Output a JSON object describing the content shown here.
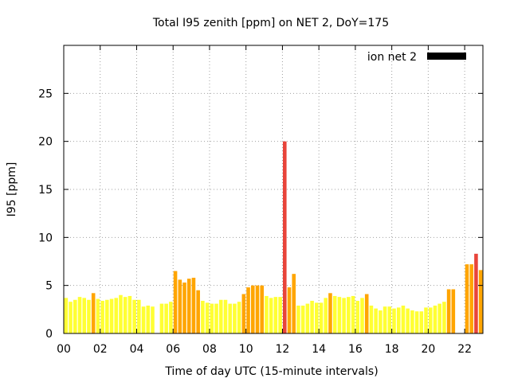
{
  "chart_data": {
    "type": "bar",
    "title": "Total I95 zenith [ppm] on NET 2, DoY=175",
    "xlabel": "Time of day UTC (15-minute intervals)",
    "ylabel": "I95 [ppm]",
    "xlim": [
      0,
      23
    ],
    "ylim": [
      0,
      30
    ],
    "x_ticks": [
      "00",
      "02",
      "04",
      "06",
      "08",
      "10",
      "12",
      "14",
      "16",
      "18",
      "20",
      "22"
    ],
    "y_ticks": [
      "0",
      "5",
      "10",
      "15",
      "20",
      "25"
    ],
    "grid": true,
    "legend": {
      "position": "top-right",
      "entries": [
        {
          "name": "ion net 2",
          "color": "#000000"
        }
      ]
    },
    "colors": {
      "low": "#ffff33",
      "medium": "#ffa500",
      "high": "#e8443a"
    },
    "bar_width_hours": 0.2,
    "bars": [
      {
        "x": 0.125,
        "value": 3.7,
        "level": "low"
      },
      {
        "x": 0.375,
        "value": 3.3,
        "level": "low"
      },
      {
        "x": 0.625,
        "value": 3.5,
        "level": "low"
      },
      {
        "x": 0.875,
        "value": 3.8,
        "level": "low"
      },
      {
        "x": 1.125,
        "value": 3.7,
        "level": "low"
      },
      {
        "x": 1.375,
        "value": 3.5,
        "level": "low"
      },
      {
        "x": 1.625,
        "value": 4.2,
        "level": "medium"
      },
      {
        "x": 1.875,
        "value": 3.6,
        "level": "low"
      },
      {
        "x": 2.125,
        "value": 3.4,
        "level": "low"
      },
      {
        "x": 2.375,
        "value": 3.5,
        "level": "low"
      },
      {
        "x": 2.625,
        "value": 3.6,
        "level": "low"
      },
      {
        "x": 2.875,
        "value": 3.7,
        "level": "low"
      },
      {
        "x": 3.125,
        "value": 4.0,
        "level": "low"
      },
      {
        "x": 3.375,
        "value": 3.8,
        "level": "low"
      },
      {
        "x": 3.625,
        "value": 3.9,
        "level": "low"
      },
      {
        "x": 3.875,
        "value": 3.5,
        "level": "low"
      },
      {
        "x": 4.125,
        "value": 3.5,
        "level": "low"
      },
      {
        "x": 4.375,
        "value": 2.8,
        "level": "low"
      },
      {
        "x": 4.625,
        "value": 2.9,
        "level": "low"
      },
      {
        "x": 4.875,
        "value": 2.8,
        "level": "low"
      },
      {
        "x": 5.375,
        "value": 3.1,
        "level": "low"
      },
      {
        "x": 5.625,
        "value": 3.1,
        "level": "low"
      },
      {
        "x": 5.875,
        "value": 3.3,
        "level": "low"
      },
      {
        "x": 6.125,
        "value": 6.5,
        "level": "medium"
      },
      {
        "x": 6.375,
        "value": 5.6,
        "level": "medium"
      },
      {
        "x": 6.625,
        "value": 5.3,
        "level": "medium"
      },
      {
        "x": 6.875,
        "value": 5.7,
        "level": "medium"
      },
      {
        "x": 7.125,
        "value": 5.8,
        "level": "medium"
      },
      {
        "x": 7.375,
        "value": 4.5,
        "level": "medium"
      },
      {
        "x": 7.625,
        "value": 3.4,
        "level": "low"
      },
      {
        "x": 7.875,
        "value": 3.2,
        "level": "low"
      },
      {
        "x": 8.125,
        "value": 3.1,
        "level": "low"
      },
      {
        "x": 8.375,
        "value": 3.1,
        "level": "low"
      },
      {
        "x": 8.625,
        "value": 3.5,
        "level": "low"
      },
      {
        "x": 8.875,
        "value": 3.5,
        "level": "low"
      },
      {
        "x": 9.125,
        "value": 3.1,
        "level": "low"
      },
      {
        "x": 9.375,
        "value": 3.1,
        "level": "low"
      },
      {
        "x": 9.625,
        "value": 3.3,
        "level": "low"
      },
      {
        "x": 9.875,
        "value": 4.1,
        "level": "medium"
      },
      {
        "x": 10.125,
        "value": 4.8,
        "level": "medium"
      },
      {
        "x": 10.375,
        "value": 5.0,
        "level": "medium"
      },
      {
        "x": 10.625,
        "value": 5.0,
        "level": "medium"
      },
      {
        "x": 10.875,
        "value": 5.0,
        "level": "medium"
      },
      {
        "x": 11.125,
        "value": 3.9,
        "level": "low"
      },
      {
        "x": 11.375,
        "value": 3.7,
        "level": "low"
      },
      {
        "x": 11.625,
        "value": 3.8,
        "level": "low"
      },
      {
        "x": 11.875,
        "value": 3.8,
        "level": "low"
      },
      {
        "x": 12.125,
        "value": 20.0,
        "level": "high"
      },
      {
        "x": 12.375,
        "value": 4.8,
        "level": "medium"
      },
      {
        "x": 12.625,
        "value": 6.2,
        "level": "medium"
      },
      {
        "x": 12.875,
        "value": 2.9,
        "level": "low"
      },
      {
        "x": 13.125,
        "value": 2.9,
        "level": "low"
      },
      {
        "x": 13.375,
        "value": 3.1,
        "level": "low"
      },
      {
        "x": 13.625,
        "value": 3.4,
        "level": "low"
      },
      {
        "x": 13.875,
        "value": 3.2,
        "level": "low"
      },
      {
        "x": 14.125,
        "value": 3.2,
        "level": "low"
      },
      {
        "x": 14.375,
        "value": 3.7,
        "level": "low"
      },
      {
        "x": 14.625,
        "value": 4.2,
        "level": "medium"
      },
      {
        "x": 14.875,
        "value": 3.9,
        "level": "low"
      },
      {
        "x": 15.125,
        "value": 3.8,
        "level": "low"
      },
      {
        "x": 15.375,
        "value": 3.7,
        "level": "low"
      },
      {
        "x": 15.625,
        "value": 3.8,
        "level": "low"
      },
      {
        "x": 15.875,
        "value": 3.9,
        "level": "low"
      },
      {
        "x": 16.125,
        "value": 3.4,
        "level": "low"
      },
      {
        "x": 16.375,
        "value": 3.7,
        "level": "low"
      },
      {
        "x": 16.625,
        "value": 4.1,
        "level": "medium"
      },
      {
        "x": 16.875,
        "value": 2.9,
        "level": "low"
      },
      {
        "x": 17.125,
        "value": 2.6,
        "level": "low"
      },
      {
        "x": 17.375,
        "value": 2.4,
        "level": "low"
      },
      {
        "x": 17.625,
        "value": 2.8,
        "level": "low"
      },
      {
        "x": 17.875,
        "value": 2.8,
        "level": "low"
      },
      {
        "x": 18.125,
        "value": 2.6,
        "level": "low"
      },
      {
        "x": 18.375,
        "value": 2.7,
        "level": "low"
      },
      {
        "x": 18.625,
        "value": 2.9,
        "level": "low"
      },
      {
        "x": 18.875,
        "value": 2.6,
        "level": "low"
      },
      {
        "x": 19.125,
        "value": 2.4,
        "level": "low"
      },
      {
        "x": 19.375,
        "value": 2.3,
        "level": "low"
      },
      {
        "x": 19.625,
        "value": 2.3,
        "level": "low"
      },
      {
        "x": 19.875,
        "value": 2.7,
        "level": "low"
      },
      {
        "x": 20.125,
        "value": 2.7,
        "level": "low"
      },
      {
        "x": 20.375,
        "value": 2.9,
        "level": "low"
      },
      {
        "x": 20.625,
        "value": 3.1,
        "level": "low"
      },
      {
        "x": 20.875,
        "value": 3.3,
        "level": "low"
      },
      {
        "x": 21.125,
        "value": 4.6,
        "level": "medium"
      },
      {
        "x": 21.375,
        "value": 4.6,
        "level": "medium"
      },
      {
        "x": 22.125,
        "value": 7.2,
        "level": "medium"
      },
      {
        "x": 22.375,
        "value": 7.2,
        "level": "medium"
      },
      {
        "x": 22.625,
        "value": 8.3,
        "level": "high"
      },
      {
        "x": 22.875,
        "value": 6.6,
        "level": "medium"
      }
    ]
  }
}
